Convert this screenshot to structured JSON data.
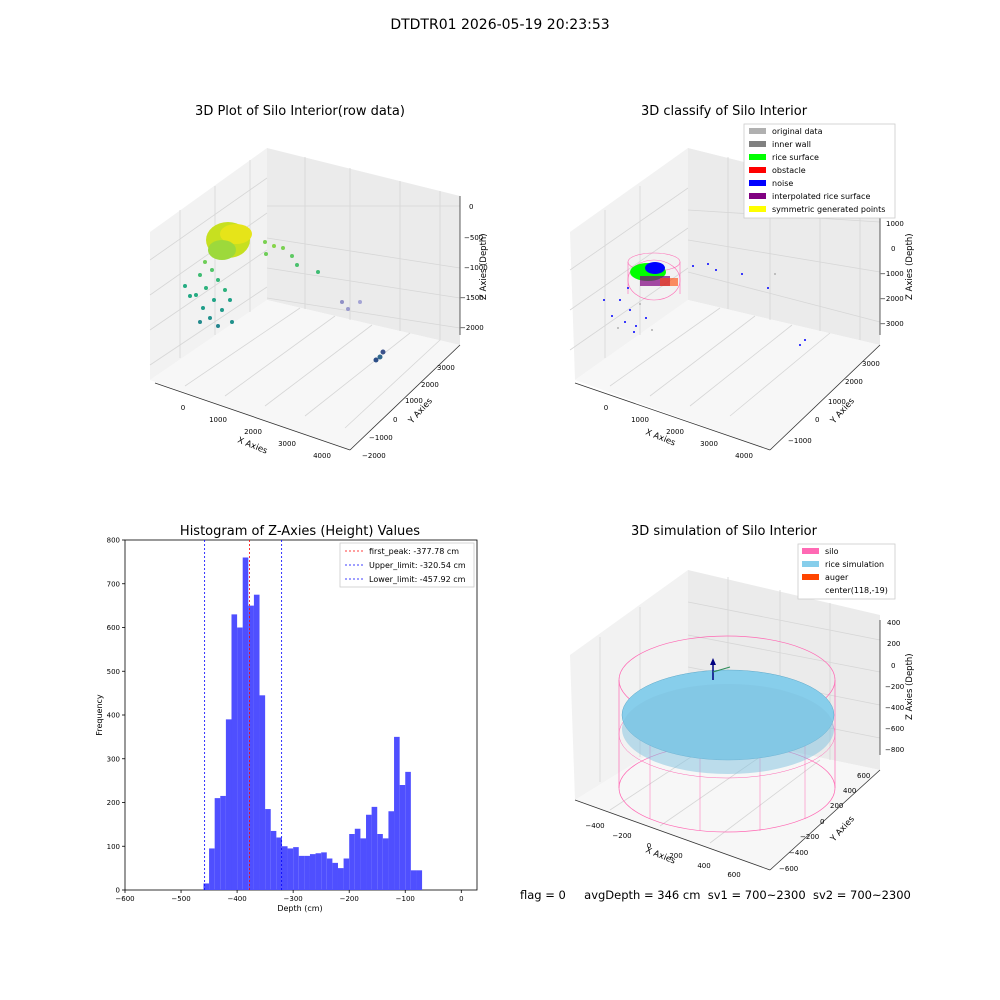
{
  "suptitle": "DTDTR01 2026-05-19 20:23:53",
  "footer": {
    "flag": "flag = 0",
    "avg_depth": "avgDepth = 346 cm",
    "sv1": "sv1 = 700~2300",
    "sv2": "sv2 = 700~2300"
  },
  "colors": {
    "original_data": "#b0b0b0",
    "inner_wall": "#808080",
    "rice_surface": "#00ff00",
    "obstacle": "#ff0000",
    "noise": "#0000ff",
    "interpolated": "#800080",
    "symmetric": "#ffff00",
    "silo": "#ff69b4",
    "rice_simulation": "#87ceeb",
    "auger": "#ff4500",
    "histogram_bar": "#4b4bff"
  },
  "chart_data": [
    {
      "type": "scatter",
      "projection": "3d",
      "title": "3D Plot of Silo Interior(row data)",
      "xlabel": "X Axies",
      "ylabel": "Y Axies",
      "zlabel": "Z Axies (Depth)",
      "x_ticks": [
        "0",
        "1000",
        "2000",
        "3000",
        "4000"
      ],
      "y_ticks": [
        "−2000",
        "−1000",
        "0",
        "1000",
        "2000",
        "3000"
      ],
      "z_ticks": [
        "0",
        "−500",
        "−1000",
        "−1500",
        "−2000"
      ],
      "grid": true,
      "colormap": "viridis by depth"
    },
    {
      "type": "scatter",
      "projection": "3d",
      "title": "3D classify of Silo Interior",
      "xlabel": "X Axies",
      "ylabel": "Y Axies",
      "zlabel": "Z Axies (Depth)",
      "x_ticks": [
        "0",
        "1000",
        "2000",
        "3000",
        "4000"
      ],
      "y_ticks": [
        "−1000",
        "0",
        "1000",
        "2000",
        "3000"
      ],
      "z_ticks": [
        "1000",
        "0",
        "−1000",
        "−2000",
        "−3000"
      ],
      "legend": [
        "original data",
        "inner wall",
        "rice surface",
        "obstacle",
        "noise",
        "interpolated rice surface",
        "symmetric generated points"
      ],
      "legend_position": "top-right",
      "grid": true
    },
    {
      "type": "bar",
      "title": "Histogram of Z-Axies (Height) Values",
      "xlabel": "Depth (cm)",
      "ylabel": "Frequency",
      "xlim": [
        -600,
        0
      ],
      "ylim": [
        0,
        800
      ],
      "x_ticks": [
        "−600",
        "−500",
        "−400",
        "−300",
        "−200",
        "−100",
        "0"
      ],
      "y_ticks": [
        "0",
        "100",
        "200",
        "300",
        "400",
        "500",
        "600",
        "700",
        "800"
      ],
      "bin_start": -460,
      "bin_width": 10,
      "values": [
        15,
        95,
        210,
        215,
        390,
        630,
        600,
        760,
        650,
        675,
        445,
        185,
        135,
        120,
        100,
        95,
        98,
        78,
        78,
        82,
        84,
        86,
        72,
        62,
        50,
        72,
        128,
        140,
        118,
        172,
        190,
        128,
        118,
        180,
        350,
        240,
        270,
        45,
        45
      ],
      "lines": [
        {
          "label": "first_peak: -377.78 cm",
          "x": -377.78,
          "color": "#ff0000"
        },
        {
          "label": "Upper_limit: -320.54 cm",
          "x": -320.54,
          "color": "#0000ff"
        },
        {
          "label": "Lower_limit: -457.92 cm",
          "x": -457.92,
          "color": "#0000ff"
        }
      ],
      "legend_position": "top-right"
    },
    {
      "type": "surface",
      "projection": "3d",
      "title": "3D simulation of Silo Interior",
      "xlabel": "X Axies",
      "ylabel": "Y Axies",
      "zlabel": "Z Axies (Depth)",
      "x_ticks": [
        "−400",
        "−200",
        "0",
        "200",
        "400",
        "600"
      ],
      "y_ticks": [
        "−600",
        "−400",
        "−200",
        "0",
        "200",
        "400",
        "600"
      ],
      "z_ticks": [
        "400",
        "200",
        "0",
        "−200",
        "−400",
        "−600",
        "−800"
      ],
      "legend": [
        "silo",
        "rice simulation",
        "auger",
        "center(118,-19)"
      ],
      "legend_position": "top-right",
      "grid": true
    }
  ]
}
